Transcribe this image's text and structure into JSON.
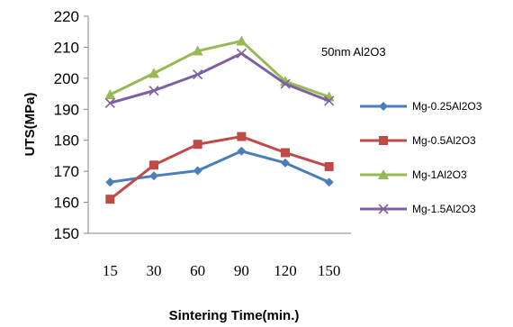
{
  "chart_data": {
    "type": "line",
    "title": "",
    "annotation": "50nm Al2O3",
    "xlabel": "Sintering Time(min.)",
    "ylabel": "UTS(MPa)",
    "categories": [
      "15",
      "30",
      "60",
      "90",
      "120",
      "150"
    ],
    "ylim": [
      150,
      220
    ],
    "yticks": [
      150,
      160,
      170,
      180,
      190,
      200,
      210,
      220
    ],
    "grid": false,
    "legend_position": "right",
    "series": [
      {
        "name": "Mg-0.25Al2O3",
        "color": "#4a7ebb",
        "marker": "diamond",
        "values": [
          166.5,
          168.5,
          170.2,
          176.5,
          172.7,
          166.5
        ]
      },
      {
        "name": "Mg-0.5Al2O3",
        "color": "#be4b48",
        "marker": "square",
        "values": [
          161,
          172,
          178.7,
          181.2,
          176,
          171.5
        ]
      },
      {
        "name": "Mg-1Al2O3",
        "color": "#98b954",
        "marker": "triangle",
        "values": [
          194.7,
          201.6,
          208.8,
          212,
          199,
          194
        ]
      },
      {
        "name": "Mg-1.5Al2O3",
        "color": "#7d60a0",
        "marker": "x",
        "values": [
          192,
          196,
          201.2,
          208,
          198.2,
          192.7
        ]
      }
    ]
  }
}
